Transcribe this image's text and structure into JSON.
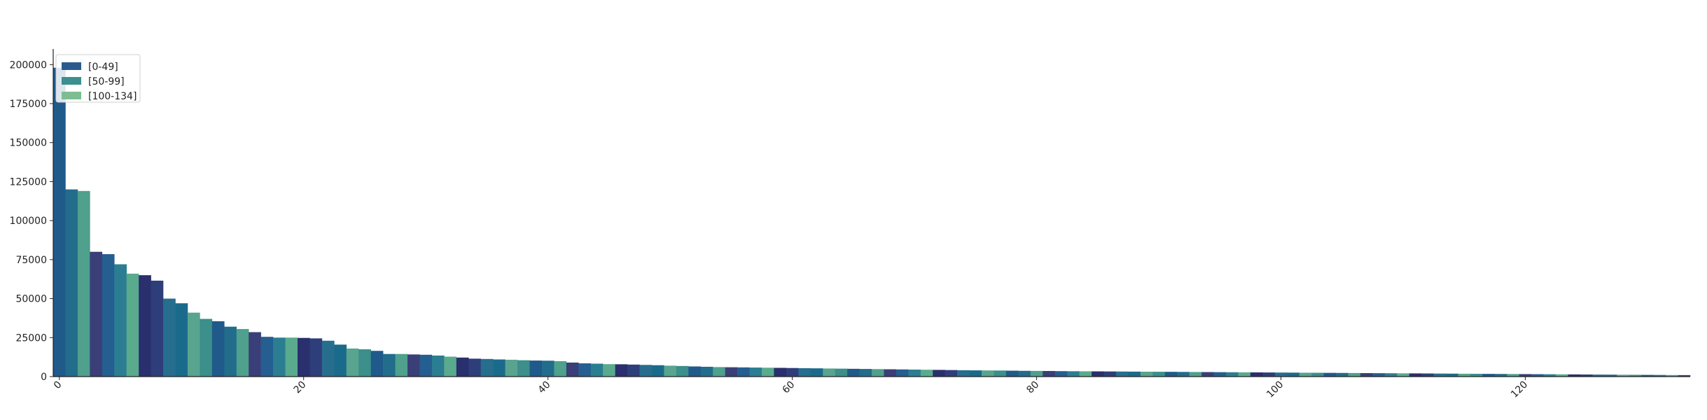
{
  "chart_data": {
    "type": "bar",
    "title": "",
    "xlabel": "",
    "ylabel": "",
    "xlim": [
      -0.5,
      133.5
    ],
    "ylim": [
      0,
      210000
    ],
    "x_ticks": [
      0,
      20,
      40,
      60,
      80,
      100,
      120
    ],
    "y_ticks": [
      0,
      25000,
      50000,
      75000,
      100000,
      125000,
      150000,
      175000,
      200000
    ],
    "legend": {
      "position": "top-left",
      "entries": [
        {
          "label": "[0-49]",
          "color": "#2a5b8c"
        },
        {
          "label": "[50-99]",
          "color": "#3a8f8f"
        },
        {
          "label": "[100-134]",
          "color": "#7cbd93"
        }
      ]
    },
    "bar_colors_cycle": [
      "#1f5a8a",
      "#226c8c",
      "#4fa08c",
      "#3a3f78",
      "#255e90",
      "#2b7e92",
      "#5aab8e",
      "#2a2f6e",
      "#2e3e7a",
      "#276e8e",
      "#1a6b8b",
      "#58a48f",
      "#3c8f8a"
    ],
    "values": [
      198000,
      120000,
      119000,
      80000,
      78500,
      72000,
      66000,
      65000,
      61500,
      50000,
      47000,
      41000,
      37000,
      35500,
      32000,
      30500,
      28500,
      25500,
      25000,
      25000,
      24800,
      24500,
      23000,
      20500,
      18000,
      17500,
      16500,
      14500,
      14500,
      14200,
      14000,
      13500,
      12800,
      12200,
      11500,
      11300,
      11000,
      10800,
      10500,
      10300,
      10200,
      9900,
      9000,
      8500,
      8300,
      8000,
      7900,
      7700,
      7500,
      7300,
      7000,
      6800,
      6500,
      6300,
      6100,
      6000,
      5900,
      5800,
      5700,
      5600,
      5500,
      5400,
      5300,
      5200,
      5100,
      5000,
      4900,
      4800,
      4700,
      4600,
      4500,
      4400,
      4300,
      4200,
      4100,
      4000,
      3950,
      3900,
      3800,
      3700,
      3650,
      3600,
      3500,
      3450,
      3400,
      3350,
      3300,
      3250,
      3200,
      3150,
      3100,
      3050,
      3000,
      2950,
      2900,
      2850,
      2800,
      2750,
      2700,
      2650,
      2600,
      2550,
      2500,
      2450,
      2400,
      2350,
      2300,
      2250,
      2200,
      2150,
      2100,
      2050,
      2000,
      1950,
      1900,
      1850,
      1800,
      1750,
      1700,
      1650,
      1600,
      1550,
      1500,
      1450,
      1400,
      1350,
      1300,
      1250,
      1200,
      1150,
      1100,
      1050,
      1000,
      950
    ]
  }
}
